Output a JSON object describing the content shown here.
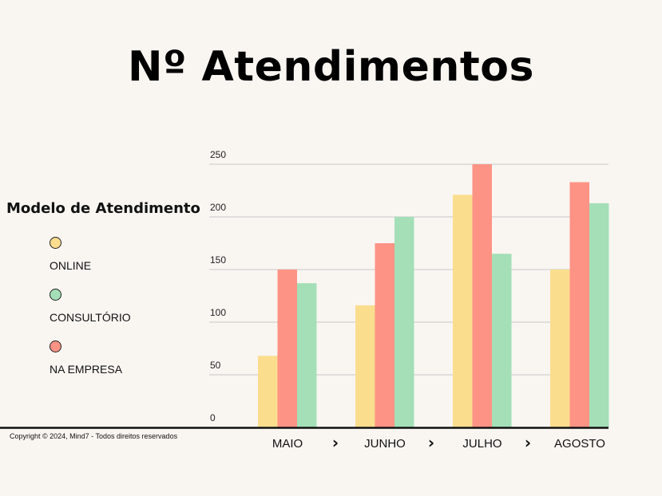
{
  "title": "Nº Atendimentos",
  "legend": {
    "title": "Modelo de Atendimento",
    "items": [
      {
        "label": "ONLINE",
        "color": "#fbdd8e"
      },
      {
        "label": "CONSULTÓRIO",
        "color": "#a4dfb7"
      },
      {
        "label": "NA EMPRESA",
        "color": "#fd9385"
      }
    ]
  },
  "copyright": "Copyright © 2024, Mind7 - Todos direitos reservados",
  "chart_data": {
    "type": "bar",
    "categories": [
      "MAIO",
      "JUNHO",
      "JULHO",
      "AGOSTO"
    ],
    "separator": "›",
    "series": [
      {
        "name": "ONLINE",
        "color": "#fbdd8e",
        "values": [
          68,
          116,
          221,
          150
        ]
      },
      {
        "name": "NA EMPRESA",
        "color": "#fd9385",
        "values": [
          150,
          175,
          250,
          233
        ]
      },
      {
        "name": "CONSULTÓRIO",
        "color": "#a4dfb7",
        "values": [
          137,
          200,
          165,
          213
        ]
      }
    ],
    "yticks": [
      0,
      50,
      100,
      150,
      200,
      250
    ],
    "ylim": [
      0,
      250
    ],
    "grid": true,
    "legend_position": "left"
  }
}
